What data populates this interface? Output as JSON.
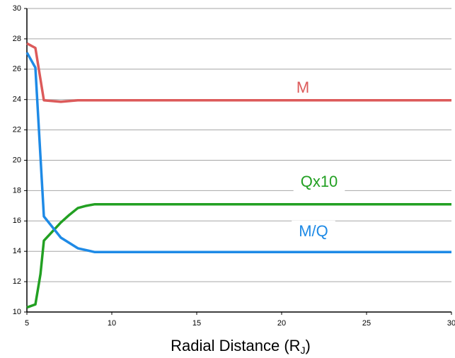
{
  "chart_data": {
    "type": "line",
    "xlabel": {
      "main": "Radial Distance (R",
      "sub": "J",
      "end": ")"
    },
    "xlim": [
      5,
      30
    ],
    "xticks": [
      5,
      10,
      15,
      20,
      25,
      30
    ],
    "ylim": [
      10,
      30
    ],
    "yticks": [
      10,
      12,
      14,
      16,
      18,
      20,
      22,
      24,
      26,
      28,
      30
    ],
    "grid": true,
    "series": [
      {
        "name": "M",
        "color": "#dc5a5a",
        "x": [
          5,
          5.5,
          6,
          7,
          8,
          9,
          10,
          15,
          20,
          25,
          30
        ],
        "values": [
          27.7,
          27.4,
          23.95,
          23.85,
          23.95,
          23.95,
          23.95,
          23.95,
          23.95,
          23.95,
          23.95
        ]
      },
      {
        "name": "Qx10",
        "color": "#22a022",
        "x": [
          5,
          5.5,
          5.8,
          6,
          6.5,
          7,
          7.5,
          8,
          8.5,
          9,
          10,
          15,
          20,
          25,
          30
        ],
        "values": [
          10.3,
          10.5,
          12.5,
          14.7,
          15.3,
          15.9,
          16.4,
          16.85,
          17.0,
          17.1,
          17.1,
          17.1,
          17.1,
          17.1,
          17.1
        ]
      },
      {
        "name": "M/Q",
        "color": "#1e8ae6",
        "x": [
          5,
          5.5,
          6,
          7,
          8,
          9,
          10,
          15,
          20,
          25,
          30
        ],
        "values": [
          27.1,
          26.1,
          16.3,
          14.9,
          14.2,
          13.95,
          13.95,
          13.95,
          13.95,
          13.95,
          13.95
        ]
      }
    ]
  }
}
